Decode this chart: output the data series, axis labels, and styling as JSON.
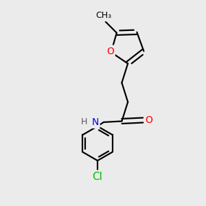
{
  "background_color": "#ebebeb",
  "bond_color": "#000000",
  "atom_colors": {
    "O": "#ff0000",
    "N": "#0000ff",
    "Cl": "#00bb00",
    "C": "#000000",
    "H": "#555555"
  },
  "font_size": 10,
  "lw": 1.6,
  "fig_size": [
    3.0,
    3.0
  ],
  "dpi": 100
}
